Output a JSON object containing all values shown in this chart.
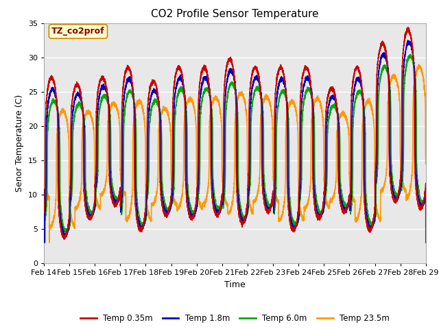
{
  "title": "CO2 Profile Sensor Temperature",
  "xlabel": "Time",
  "ylabel": "Senor Temperature (C)",
  "ylim": [
    0,
    35
  ],
  "yticks": [
    0,
    5,
    10,
    15,
    20,
    25,
    30,
    35
  ],
  "xtick_labels": [
    "Feb 14",
    "Feb 15",
    "Feb 16",
    "Feb 17",
    "Feb 18",
    "Feb 19",
    "Feb 20",
    "Feb 21",
    "Feb 22",
    "Feb 23",
    "Feb 24",
    "Feb 25",
    "Feb 26",
    "Feb 27",
    "Feb 28",
    "Feb 29"
  ],
  "series": {
    "Temp 0.35m": {
      "color": "#cc0000",
      "linewidth": 1.2
    },
    "Temp 1.8m": {
      "color": "#0000bb",
      "linewidth": 1.2
    },
    "Temp 6.0m": {
      "color": "#00aa00",
      "linewidth": 1.2
    },
    "Temp 23.5m": {
      "color": "#ff9900",
      "linewidth": 1.2
    }
  },
  "plot_bg_color": "#e8e8e8",
  "annotation_text": "TZ_co2prof",
  "annotation_bg": "#ffffcc",
  "annotation_border": "#cc8800",
  "n_days": 15
}
